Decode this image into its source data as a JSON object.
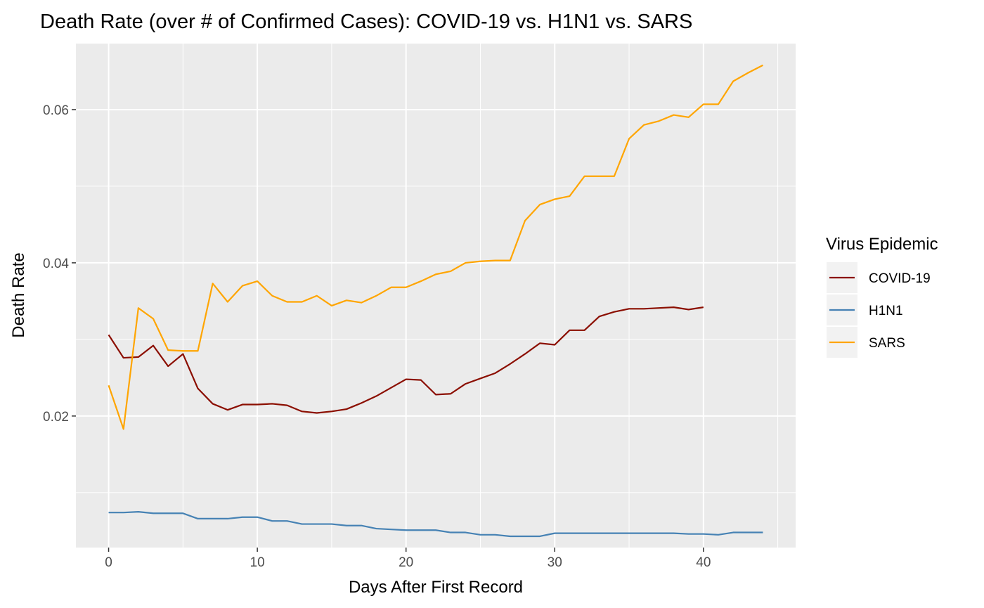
{
  "chart_data": {
    "type": "line",
    "title": "Death Rate (over # of Confirmed Cases): COVID-19 vs. H1N1 vs. SARS",
    "xlabel": "Days After First Record",
    "ylabel": "Death Rate",
    "xlim": [
      -2.2,
      46.2
    ],
    "ylim": [
      0.00283,
      0.06862
    ],
    "x_ticks": [
      0,
      10,
      20,
      30,
      40
    ],
    "x_tick_labels": [
      "0",
      "10",
      "20",
      "30",
      "40"
    ],
    "y_ticks": [
      0.02,
      0.04,
      0.06
    ],
    "y_tick_labels": [
      "0.02",
      "0.04",
      "0.06"
    ],
    "grid": true,
    "background": "#ebebeb",
    "legend": {
      "title": "Virus Epidemic",
      "position": "right"
    },
    "series": [
      {
        "name": "COVID-19",
        "color": "#8b0e00",
        "x": [
          0,
          1,
          2,
          3,
          4,
          5,
          6,
          7,
          8,
          9,
          10,
          11,
          12,
          13,
          14,
          15,
          16,
          17,
          18,
          19,
          20,
          21,
          22,
          23,
          24,
          25,
          26,
          27,
          28,
          29,
          30,
          31,
          32,
          33,
          34,
          35,
          36,
          37,
          38,
          39,
          40
        ],
        "y": [
          0.0306,
          0.0276,
          0.0277,
          0.0292,
          0.0265,
          0.0281,
          0.0236,
          0.0216,
          0.0208,
          0.0215,
          0.0215,
          0.0216,
          0.0214,
          0.0206,
          0.0204,
          0.0206,
          0.0209,
          0.0217,
          0.0226,
          0.0237,
          0.0248,
          0.0247,
          0.0228,
          0.0229,
          0.0242,
          0.0249,
          0.0256,
          0.0268,
          0.0281,
          0.0295,
          0.0293,
          0.0312,
          0.0312,
          0.033,
          0.0336,
          0.034,
          0.034,
          0.0341,
          0.0342,
          0.0339,
          0.0342
        ]
      },
      {
        "name": "H1N1",
        "color": "#4682b4",
        "x": [
          0,
          1,
          2,
          3,
          4,
          5,
          6,
          7,
          8,
          9,
          10,
          11,
          12,
          13,
          14,
          15,
          16,
          17,
          18,
          19,
          20,
          21,
          22,
          23,
          24,
          25,
          26,
          27,
          28,
          29,
          30,
          31,
          32,
          33,
          34,
          35,
          36,
          37,
          38,
          39,
          40,
          41,
          42,
          43,
          44
        ],
        "y": [
          0.0074,
          0.0074,
          0.0075,
          0.0073,
          0.0073,
          0.0073,
          0.0066,
          0.0066,
          0.0066,
          0.0068,
          0.0068,
          0.0063,
          0.0063,
          0.0059,
          0.0059,
          0.0059,
          0.0057,
          0.0057,
          0.0053,
          0.0052,
          0.0051,
          0.0051,
          0.0051,
          0.0048,
          0.0048,
          0.0045,
          0.0045,
          0.0043,
          0.0043,
          0.0043,
          0.0047,
          0.0047,
          0.0047,
          0.0047,
          0.0047,
          0.0047,
          0.0047,
          0.0047,
          0.0047,
          0.0046,
          0.0046,
          0.0045,
          0.0048,
          0.0048,
          0.0048
        ]
      },
      {
        "name": "SARS",
        "color": "#ffa500",
        "x": [
          0,
          1,
          2,
          3,
          4,
          5,
          6,
          7,
          8,
          9,
          10,
          11,
          12,
          13,
          14,
          15,
          16,
          17,
          18,
          19,
          20,
          21,
          22,
          23,
          24,
          25,
          26,
          27,
          28,
          29,
          30,
          31,
          32,
          33,
          34,
          35,
          36,
          37,
          38,
          39,
          40,
          41,
          42,
          43,
          44
        ],
        "y": [
          0.024,
          0.0183,
          0.0341,
          0.0327,
          0.0286,
          0.0285,
          0.0285,
          0.0373,
          0.0349,
          0.037,
          0.0376,
          0.0357,
          0.0349,
          0.0349,
          0.0357,
          0.0344,
          0.0351,
          0.0348,
          0.0357,
          0.0368,
          0.0368,
          0.0376,
          0.0385,
          0.0389,
          0.04,
          0.0402,
          0.0403,
          0.0403,
          0.0455,
          0.0476,
          0.0483,
          0.0487,
          0.0513,
          0.0513,
          0.0513,
          0.0562,
          0.058,
          0.0585,
          0.0593,
          0.059,
          0.0607,
          0.0607,
          0.0637,
          0.0648,
          0.0658
        ]
      }
    ]
  }
}
